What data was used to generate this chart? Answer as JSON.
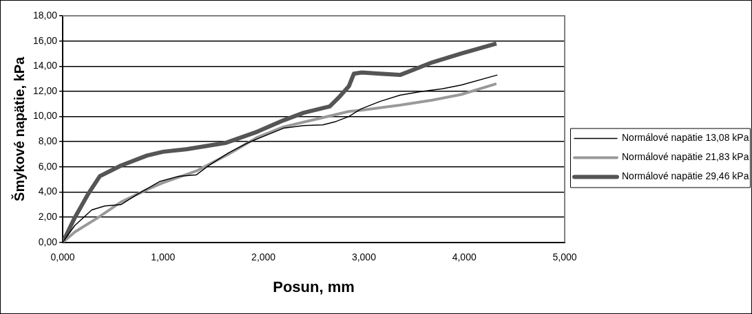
{
  "chart_data": {
    "type": "line",
    "xlabel": "Posun, mm",
    "ylabel": "Šmykové napätie, kPa",
    "xlim": [
      0,
      5
    ],
    "xticks": [
      {
        "value": 0,
        "label": "0,000"
      },
      {
        "value": 1,
        "label": "1,000"
      },
      {
        "value": 2,
        "label": "2,000"
      },
      {
        "value": 3,
        "label": "3,000"
      },
      {
        "value": 4,
        "label": "4,000"
      },
      {
        "value": 5,
        "label": "5,000"
      }
    ],
    "ylim": [
      0,
      18
    ],
    "yticks": [
      {
        "value": 0,
        "label": "0,00"
      },
      {
        "value": 2,
        "label": "2,00"
      },
      {
        "value": 4,
        "label": "4,00"
      },
      {
        "value": 6,
        "label": "6,00"
      },
      {
        "value": 8,
        "label": "8,00"
      },
      {
        "value": 10,
        "label": "10,00"
      },
      {
        "value": 12,
        "label": "12,00"
      },
      {
        "value": 14,
        "label": "14,00"
      },
      {
        "value": 16,
        "label": "16,00"
      },
      {
        "value": 18,
        "label": "18,00"
      }
    ],
    "grid": "y",
    "legend": "right",
    "marker": "none",
    "series": [
      {
        "name": "Normálové napätie 13,08 kPa",
        "color": "#000000",
        "x": [
          0,
          0.12,
          0.29,
          0.42,
          0.58,
          0.74,
          0.97,
          1.16,
          1.33,
          1.45,
          1.65,
          1.84,
          2.04,
          2.2,
          2.4,
          2.59,
          2.72,
          2.85,
          2.97,
          3.16,
          3.36,
          3.58,
          3.78,
          3.97,
          4.33
        ],
        "values": [
          0,
          1.34,
          2.58,
          2.9,
          3.0,
          3.8,
          4.85,
          5.26,
          5.36,
          6.08,
          7.1,
          7.9,
          8.55,
          9.07,
          9.28,
          9.34,
          9.6,
          10.0,
          10.6,
          11.2,
          11.7,
          12.0,
          12.2,
          12.5,
          13.3
        ]
      },
      {
        "name": "Normálové napätie 21,83 kPa",
        "color": "#999999",
        "x": [
          0,
          0.12,
          0.35,
          0.58,
          0.84,
          1.0,
          1.33,
          1.65,
          1.94,
          2.2,
          2.53,
          2.85,
          2.97,
          3.36,
          3.68,
          3.97,
          4.32
        ],
        "values": [
          0,
          0.82,
          1.96,
          3.2,
          4.2,
          4.74,
          5.67,
          7.0,
          8.35,
          9.18,
          9.8,
          10.4,
          10.5,
          10.9,
          11.3,
          11.75,
          12.6
        ]
      },
      {
        "name": "Normálové napätie 29,46 kPa",
        "color": "#555555",
        "x": [
          0,
          0.12,
          0.25,
          0.37,
          0.58,
          0.84,
          1.0,
          1.23,
          1.62,
          1.94,
          2.2,
          2.4,
          2.66,
          2.76,
          2.85,
          2.9,
          2.98,
          3.16,
          3.36,
          3.52,
          3.68,
          3.97,
          4.32
        ],
        "values": [
          0,
          1.96,
          3.8,
          5.26,
          6.1,
          6.9,
          7.2,
          7.4,
          7.9,
          8.8,
          9.7,
          10.3,
          10.8,
          11.6,
          12.4,
          13.4,
          13.5,
          13.4,
          13.3,
          13.8,
          14.3,
          15.0,
          15.8
        ]
      }
    ]
  }
}
